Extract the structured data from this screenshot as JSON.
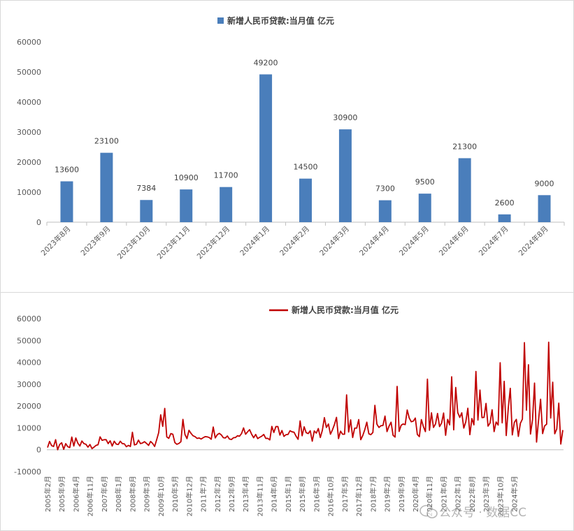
{
  "charts": [
    {
      "type": "bar",
      "title": "",
      "legend": "新增人民币贷款:当月值 亿元",
      "legend_position": "top",
      "color": "#4a7ebb",
      "ylim": [
        0,
        60000
      ],
      "yticks": [
        0,
        10000,
        20000,
        30000,
        40000,
        50000,
        60000
      ],
      "categories": [
        "2023年8月",
        "2023年9月",
        "2023年10月",
        "2023年11月",
        "2023年12月",
        "2024年1月",
        "2024年2月",
        "2024年3月",
        "2024年4月",
        "2024年5月",
        "2024年6月",
        "2024年7月",
        "2024年8月"
      ],
      "values": [
        13600,
        23100,
        7384,
        10900,
        11700,
        49200,
        14500,
        30900,
        7300,
        9500,
        21300,
        2600,
        9000
      ],
      "data_labels": [
        "13600",
        "23100",
        "7384",
        "10900",
        "11700",
        "49200",
        "14500",
        "30900",
        "7300",
        "9500",
        "21300",
        "2600",
        "9000"
      ],
      "grid": false
    },
    {
      "type": "line",
      "title": "",
      "legend": "新增人民币贷款:当月值 亿元",
      "legend_position": "top",
      "color": "#c00000",
      "ylim": [
        -10000,
        60000
      ],
      "yticks": [
        -10000,
        0,
        10000,
        20000,
        30000,
        40000,
        50000,
        60000
      ],
      "x_start": "2005年2月",
      "x_end": "2024年8月",
      "x_tick_labels": [
        "2005年2月",
        "2005年9月",
        "2006年4月",
        "2006年11月",
        "2007年6月",
        "2008年1月",
        "2008年8月",
        "2009年3月",
        "2009年10月",
        "2010年5月",
        "2010年12月",
        "2011年7月",
        "2012年2月",
        "2012年9月",
        "2013年4月",
        "2013年11月",
        "2014年6月",
        "2015年1月",
        "2015年8月",
        "2016年3月",
        "2016年10月",
        "2017年5月",
        "2017年12月",
        "2018年7月",
        "2019年2月",
        "2019年9月",
        "2020年4月",
        "2020年11月",
        "2021年6月",
        "2022年1月",
        "2022年8月",
        "2023年3月",
        "2023年10月",
        "2024年5月"
      ],
      "values": [
        1000,
        3800,
        1900,
        1500,
        4600,
        0,
        2400,
        3200,
        200,
        2800,
        1400,
        1000,
        5800,
        1700,
        5400,
        3000,
        1700,
        4000,
        2800,
        2500,
        1200,
        2400,
        500,
        1200,
        2000,
        2300,
        5900,
        4300,
        4600,
        4600,
        2800,
        4100,
        1700,
        3900,
        2600,
        2400,
        3900,
        2800,
        2700,
        1400,
        2000,
        1500,
        8000,
        2200,
        2500,
        4400,
        2800,
        3100,
        3700,
        2900,
        2000,
        3800,
        2900,
        1500,
        4600,
        7800,
        16000,
        10700,
        18900,
        5900,
        5200,
        7400,
        7100,
        3300,
        2500,
        2900,
        3700,
        13900,
        7000,
        5100,
        8900,
        7500,
        6400,
        6000,
        5200,
        5400,
        4900,
        5500,
        6000,
        5900,
        5600,
        4800,
        10400,
        5400,
        6900,
        7500,
        6800,
        5500,
        5400,
        6300,
        4900,
        4700,
        5500,
        5600,
        6400,
        6200,
        7400,
        10000,
        7100,
        8200,
        9200,
        7100,
        5500,
        7000,
        5100,
        5700,
        6200,
        7000,
        5200,
        5200,
        4500,
        10700,
        7900,
        10600,
        10600,
        6700,
        8800,
        6100,
        6900,
        7000,
        8700,
        8200,
        8000,
        6200,
        4800,
        13200,
        6400,
        10500,
        7800,
        7400,
        8700,
        3900,
        8600,
        7600,
        9700,
        5600,
        8900,
        14700,
        10200,
        11800,
        7100,
        9100,
        11600,
        14800,
        5100,
        8500,
        7100,
        7100,
        25100,
        8100,
        13700,
        5600,
        9900,
        9900,
        13800,
        4600,
        6500,
        9200,
        12600,
        7300,
        6900,
        7900,
        20300,
        11700,
        10200,
        11000,
        11100,
        15400,
        8300,
        10800,
        12600,
        6600,
        5800,
        29000,
        8400,
        11200,
        11800,
        11500,
        18200,
        14500,
        12800,
        13100,
        14500,
        7000,
        6000,
        13800,
        10600,
        8300,
        32300,
        8900,
        16900,
        10200,
        11800,
        16600,
        10600,
        12200,
        16800,
        6600,
        13900,
        11400,
        33400,
        9100,
        28500,
        17000,
        14800,
        16900,
        9900,
        12800,
        19000,
        6900,
        14300,
        11400,
        35800,
        13600,
        27300,
        14700,
        14800,
        21200,
        10800,
        12200,
        18300,
        8300,
        12700,
        11300,
        39800,
        12300,
        31300,
        6500,
        18900,
        28100,
        6800,
        12500,
        13900,
        6100,
        12100,
        14000,
        49000,
        18100,
        38900,
        7200,
        13600,
        30500,
        3500,
        13600,
        23100,
        7384,
        10900,
        11700,
        49200,
        14500,
        30900,
        7300,
        9500,
        21300,
        2600,
        9000
      ],
      "grid": false
    }
  ],
  "watermark": "公众号 · 数据CC"
}
